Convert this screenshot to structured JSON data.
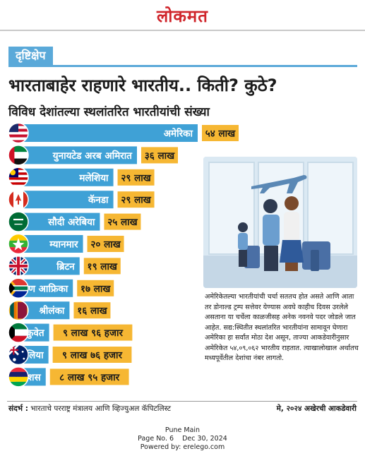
{
  "masthead": "लोकमत",
  "section_tag": "दृष्टिक्षेप",
  "headline": "भारताबाहेर राहणारे भारतीय.. किती? कुठे?",
  "subheadline": "विविध देशांतल्या स्थलांतरित भारतीयांची संख्या",
  "colors": {
    "bar": "#3fa1d6",
    "label_bg": "#f6b733",
    "accent": "#5aa9d9"
  },
  "chart_data": {
    "type": "bar",
    "orientation": "horizontal",
    "unit": "लाख",
    "categories": [
      "अमेरिका",
      "युनायटेड अरब अमिरात",
      "मलेशिया",
      "कॅनडा",
      "सौदी अरेबिया",
      "म्यानमार",
      "ब्रिटन",
      "दक्षिण आफ्रिका",
      "श्रीलंका",
      "कुवेत",
      "ऑस्ट्रेलिया",
      "मॉरिशस"
    ],
    "values": [
      54,
      36,
      29,
      29,
      25,
      20,
      19,
      17,
      16,
      9.96,
      9.76,
      8.95
    ],
    "value_labels": [
      "५४ लाख",
      "३६ लाख",
      "२९ लाख",
      "२९ लाख",
      "२५ लाख",
      "२० लाख",
      "१९ लाख",
      "१७ लाख",
      "१६ लाख",
      "९ लाख ९६ हजार",
      "९ लाख ७६ हजार",
      "८ लाख ९५ हजार"
    ],
    "flags": [
      "us-flag",
      "uae-flag",
      "malaysia-flag",
      "canada-flag",
      "saudi-arabia-flag",
      "myanmar-flag",
      "uk-flag",
      "south-africa-flag",
      "sri-lanka-flag",
      "kuwait-flag",
      "australia-flag",
      "mauritius-flag"
    ]
  },
  "description": "अमेरिकेतल्या भारतीयांची चर्चा सततच होत असते आणि आता तर डोनाल्ड ट्रम्प सत्तेवर येण्यास अवघे काहीच दिवस उरलेले असताना या चर्चेला काळजीसह अनेक नवनवे पदर जोडले जात आहेत. सद्य:स्थितीत स्थलांतरित भारतीयांना सामावून घेणारा अमेरिका हा सर्वांत मोठा देश असून, ताज्या आकडेवारीनुसार अमेरिकेत ५४,०९,०६२ भारतीय राहतात. त्याखालोखाल अर्थातच मध्यपूर्वेतील देशांचा नंबर लागतो.",
  "source_label": "संदर्भ :",
  "source_text": "भारताचे परराष्ट्र मंत्रालय आणि व्हिज्युअल कॅपिटलिस्ट",
  "date_note": "मे, २०२४ अखेरची आकडेवारी",
  "footer": {
    "line1": "Pune Main",
    "line2": "Page No. 6    Dec 30, 2024",
    "line3": "Powered by: erelego.com"
  }
}
